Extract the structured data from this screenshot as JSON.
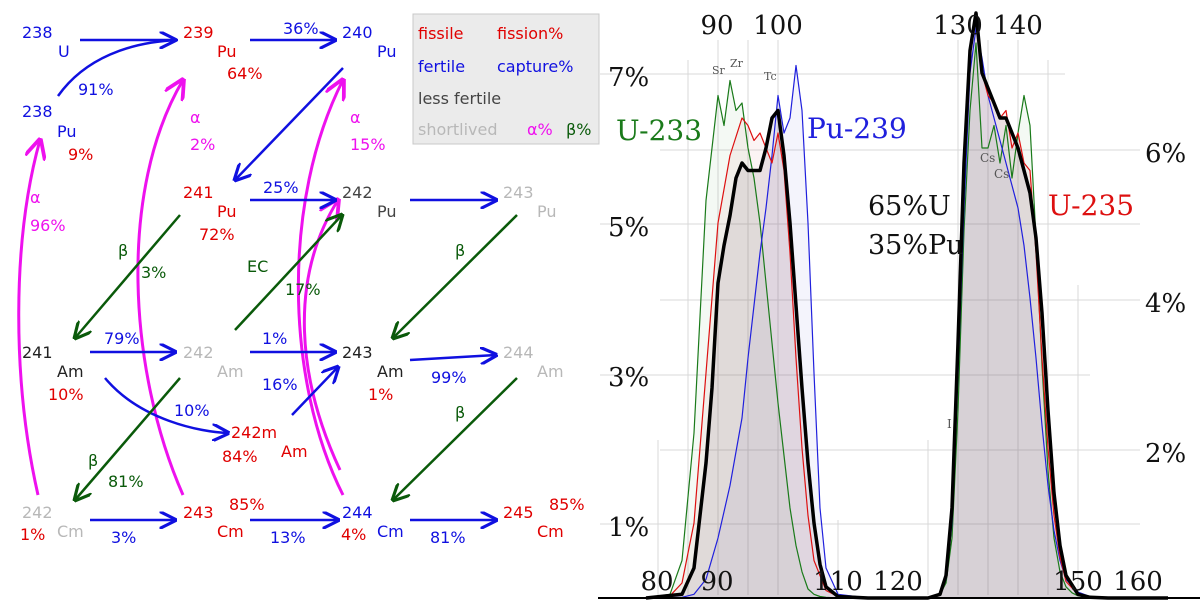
{
  "palette": {
    "fissile": "#e00000",
    "fertile": "#1010e0",
    "less_fertile": "#222222",
    "shortlived": "#b8b8b8",
    "alpha": "#ee11ee",
    "beta": "#0a5a0a",
    "capture": "#1010e0",
    "u233": "#1a7a1a",
    "pu239": "#2020dd",
    "u235": "#dd1010",
    "mix": "#000000"
  },
  "legend": {
    "fissile": "fissile",
    "fission_pct": "fission%",
    "fertile": "fertile",
    "capture_pct": "capture%",
    "less_fertile": "less fertile",
    "shortlived": "shortlived",
    "alpha_pct": "α%",
    "beta_pct": "β%"
  },
  "nuclides": [
    {
      "id": "u238",
      "mass": "238",
      "symbol": "U",
      "pct": "",
      "class": "fertile"
    },
    {
      "id": "pu239",
      "mass": "239",
      "symbol": "Pu",
      "pct": "64%",
      "class": "fissile"
    },
    {
      "id": "pu240",
      "mass": "240",
      "symbol": "Pu",
      "pct": "",
      "class": "fertile"
    },
    {
      "id": "pu238",
      "mass": "238",
      "symbol": "Pu",
      "pct": "9%",
      "class": "fertile"
    },
    {
      "id": "pu241",
      "mass": "241",
      "symbol": "Pu",
      "pct": "72%",
      "class": "fissile"
    },
    {
      "id": "pu242",
      "mass": "242",
      "symbol": "Pu",
      "pct": "",
      "class": "less_fertile"
    },
    {
      "id": "pu243",
      "mass": "243",
      "symbol": "Pu",
      "pct": "",
      "class": "shortlived"
    },
    {
      "id": "am241",
      "mass": "241",
      "symbol": "Am",
      "pct": "10%",
      "class": "less_fertile"
    },
    {
      "id": "am242",
      "mass": "242",
      "symbol": "Am",
      "pct": "",
      "class": "shortlived"
    },
    {
      "id": "am243",
      "mass": "243",
      "symbol": "Am",
      "pct": "1%",
      "class": "less_fertile"
    },
    {
      "id": "am244",
      "mass": "244",
      "symbol": "Am",
      "pct": "",
      "class": "shortlived"
    },
    {
      "id": "am242m",
      "mass": "242m",
      "symbol": "Am",
      "pct": "84%",
      "class": "fissile"
    },
    {
      "id": "cm242",
      "mass": "242",
      "symbol": "Cm",
      "pct": "1%",
      "class": "shortlived"
    },
    {
      "id": "cm243",
      "mass": "243",
      "symbol": "Cm",
      "pct": "85%",
      "class": "fissile"
    },
    {
      "id": "cm244",
      "mass": "244",
      "symbol": "Cm",
      "pct": "4%",
      "class": "fertile"
    },
    {
      "id": "cm245",
      "mass": "245",
      "symbol": "Cm",
      "pct": "85%",
      "class": "fissile"
    }
  ],
  "transitions": [
    {
      "from": "u238",
      "to": "pu239",
      "kind": "capture",
      "label": ""
    },
    {
      "from": "pu239",
      "to": "pu240",
      "kind": "capture",
      "label": "36%"
    },
    {
      "from": "u238",
      "to": "pu238",
      "kind": "capture",
      "label": "91%"
    },
    {
      "from": "pu240",
      "to": "pu241",
      "kind": "capture",
      "label": ""
    },
    {
      "from": "pu241",
      "to": "pu242",
      "kind": "capture",
      "label": "25%"
    },
    {
      "from": "pu242",
      "to": "pu243",
      "kind": "capture",
      "label": ""
    },
    {
      "from": "pu241",
      "to": "am241",
      "kind": "beta",
      "label": "β",
      "label2": "3%"
    },
    {
      "from": "am242",
      "to": "pu242",
      "kind": "ec",
      "label": "EC",
      "label2": "17%"
    },
    {
      "from": "pu243",
      "to": "am243",
      "kind": "beta",
      "label": "β",
      "label2": ""
    },
    {
      "from": "am241",
      "to": "am242",
      "kind": "capture",
      "label": "79%"
    },
    {
      "from": "am242",
      "to": "am243",
      "kind": "capture",
      "label": "1%"
    },
    {
      "from": "am242m",
      "to": "am243",
      "kind": "capture",
      "label": "16%"
    },
    {
      "from": "am243",
      "to": "am244",
      "kind": "capture",
      "label": "99%"
    },
    {
      "from": "am241",
      "to": "am242m",
      "kind": "capture",
      "label": "10%"
    },
    {
      "from": "am242",
      "to": "cm242",
      "kind": "beta",
      "label": "β",
      "label2": "81%"
    },
    {
      "from": "am244",
      "to": "cm244",
      "kind": "beta",
      "label": "β",
      "label2": ""
    },
    {
      "from": "cm242",
      "to": "cm243",
      "kind": "capture",
      "label": "3%"
    },
    {
      "from": "cm243",
      "to": "cm244",
      "kind": "capture",
      "label": "13%"
    },
    {
      "from": "cm244",
      "to": "cm245",
      "kind": "capture",
      "label": "81%"
    },
    {
      "from": "cm242",
      "to": "pu238",
      "kind": "alpha",
      "label": "α",
      "label2": "96%"
    },
    {
      "from": "cm243",
      "to": "pu239",
      "kind": "alpha",
      "label": "α",
      "label2": "2%"
    },
    {
      "from": "cm244",
      "to": "pu240",
      "kind": "alpha",
      "label": "α",
      "label2": "15%"
    },
    {
      "from": "am242m",
      "to": "pu242",
      "kind": "alpha",
      "label": "",
      "label2": ""
    }
  ],
  "chart_data": {
    "type": "line",
    "title": "",
    "xlim": [
      78,
      165
    ],
    "ylim": [
      0,
      8
    ],
    "x_ticks_top": [
      "90",
      "100",
      "130",
      "140"
    ],
    "x_ticks_bottom": [
      "80",
      "90",
      "110",
      "120",
      "150",
      "160"
    ],
    "y_ticks_left": [
      "1%",
      "3%",
      "5%",
      "7%"
    ],
    "y_ticks_right": [
      "2%",
      "4%",
      "6%"
    ],
    "annotations": [
      "65%U",
      "35%Pu"
    ],
    "element_labels": [
      "Sr",
      "Zr",
      "Tc",
      "Cs",
      "Cs",
      "I"
    ],
    "series": [
      {
        "name": "U-233",
        "color_key": "u233",
        "x": [
          78,
          82,
          84,
          86,
          88,
          90,
          91,
          92,
          93,
          94,
          95,
          96,
          97,
          98,
          99,
          100,
          101,
          102,
          103,
          104,
          105,
          106,
          107,
          108,
          110,
          115,
          120,
          125,
          126,
          127,
          128,
          129,
          130,
          131,
          132,
          133,
          134,
          135,
          136,
          137,
          138,
          139,
          140,
          141,
          142,
          143,
          144,
          145,
          146,
          147,
          148,
          149,
          150,
          152,
          155,
          160,
          165
        ],
        "y": [
          0,
          0.05,
          0.5,
          2.2,
          5.3,
          6.7,
          6.3,
          6.9,
          6.5,
          6.6,
          6.0,
          5.6,
          5.0,
          4.2,
          3.4,
          2.6,
          1.9,
          1.2,
          0.7,
          0.35,
          0.12,
          0.05,
          0.02,
          0.01,
          0,
          0,
          0,
          0,
          0.01,
          0.05,
          0.2,
          0.8,
          2.5,
          4.9,
          6.5,
          7.4,
          6.0,
          6.0,
          6.3,
          5.8,
          6.3,
          5.6,
          6.2,
          6.7,
          6.3,
          4.8,
          3.1,
          1.7,
          0.8,
          0.35,
          0.15,
          0.07,
          0.03,
          0.01,
          0,
          0,
          0
        ]
      },
      {
        "name": "Pu-239",
        "color_key": "pu239",
        "x": [
          78,
          84,
          86,
          88,
          90,
          92,
          94,
          95,
          96,
          97,
          98,
          99,
          100,
          101,
          102,
          103,
          104,
          105,
          106,
          107,
          108,
          110,
          115,
          120,
          125,
          127,
          128,
          129,
          130,
          131,
          132,
          133,
          134,
          135,
          136,
          137,
          138,
          139,
          140,
          141,
          142,
          143,
          144,
          145,
          146,
          147,
          148,
          150,
          152,
          155,
          160,
          165
        ],
        "y": [
          0,
          0.01,
          0.05,
          0.25,
          0.8,
          1.5,
          2.4,
          3.2,
          3.9,
          4.6,
          5.2,
          5.9,
          6.7,
          6.2,
          6.4,
          7.1,
          6.5,
          5.0,
          3.0,
          1.2,
          0.4,
          0.05,
          0,
          0,
          0,
          0.05,
          0.25,
          1.0,
          3.0,
          5.2,
          7.0,
          7.6,
          7.2,
          6.7,
          6.4,
          6.1,
          5.8,
          5.5,
          5.2,
          4.7,
          4.0,
          3.2,
          2.3,
          1.5,
          0.9,
          0.5,
          0.25,
          0.08,
          0.02,
          0,
          0,
          0
        ]
      },
      {
        "name": "U-235",
        "color_key": "u235",
        "x": [
          78,
          82,
          84,
          86,
          88,
          90,
          92,
          94,
          95,
          96,
          97,
          98,
          99,
          100,
          101,
          102,
          103,
          104,
          105,
          106,
          108,
          110,
          115,
          120,
          125,
          127,
          128,
          129,
          130,
          131,
          132,
          133,
          134,
          135,
          136,
          137,
          138,
          139,
          140,
          141,
          142,
          143,
          144,
          145,
          146,
          147,
          148,
          150,
          152,
          155,
          160,
          165
        ],
        "y": [
          0,
          0.03,
          0.2,
          1.0,
          3.0,
          5.0,
          5.9,
          6.4,
          6.3,
          6.1,
          6.2,
          6.0,
          5.8,
          6.2,
          5.7,
          4.6,
          3.2,
          2.0,
          1.1,
          0.5,
          0.1,
          0.02,
          0,
          0,
          0,
          0.05,
          0.3,
          1.3,
          3.6,
          6.0,
          7.2,
          7.8,
          7.0,
          6.7,
          6.6,
          6.4,
          6.5,
          6.0,
          6.2,
          5.8,
          5.7,
          4.6,
          3.2,
          2.0,
          1.1,
          0.55,
          0.22,
          0.05,
          0.01,
          0,
          0,
          0
        ]
      },
      {
        "name": "",
        "color_key": "mix",
        "x": [
          78,
          84,
          86,
          88,
          89,
          90,
          91,
          92,
          93,
          94,
          95,
          96,
          97,
          98,
          99,
          100,
          101,
          102,
          103,
          104,
          105,
          106,
          107,
          108,
          110,
          115,
          120,
          125,
          127,
          128,
          129,
          130,
          131,
          132,
          133,
          134,
          135,
          136,
          137,
          138,
          139,
          140,
          141,
          142,
          143,
          144,
          145,
          146,
          147,
          148,
          150,
          152,
          155,
          160,
          165
        ],
        "y": [
          0,
          0.05,
          0.4,
          1.8,
          2.8,
          4.2,
          4.7,
          5.1,
          5.6,
          5.8,
          5.7,
          5.7,
          5.7,
          6.0,
          6.4,
          6.5,
          5.9,
          5.0,
          3.9,
          2.8,
          1.8,
          1.0,
          0.45,
          0.15,
          0.02,
          0,
          0,
          0,
          0.05,
          0.3,
          1.2,
          3.4,
          5.8,
          7.3,
          7.8,
          7.0,
          6.8,
          6.6,
          6.4,
          6.4,
          6.2,
          6.0,
          5.7,
          5.4,
          4.8,
          3.8,
          2.5,
          1.4,
          0.7,
          0.3,
          0.05,
          0.01,
          0,
          0,
          0
        ]
      }
    ]
  }
}
